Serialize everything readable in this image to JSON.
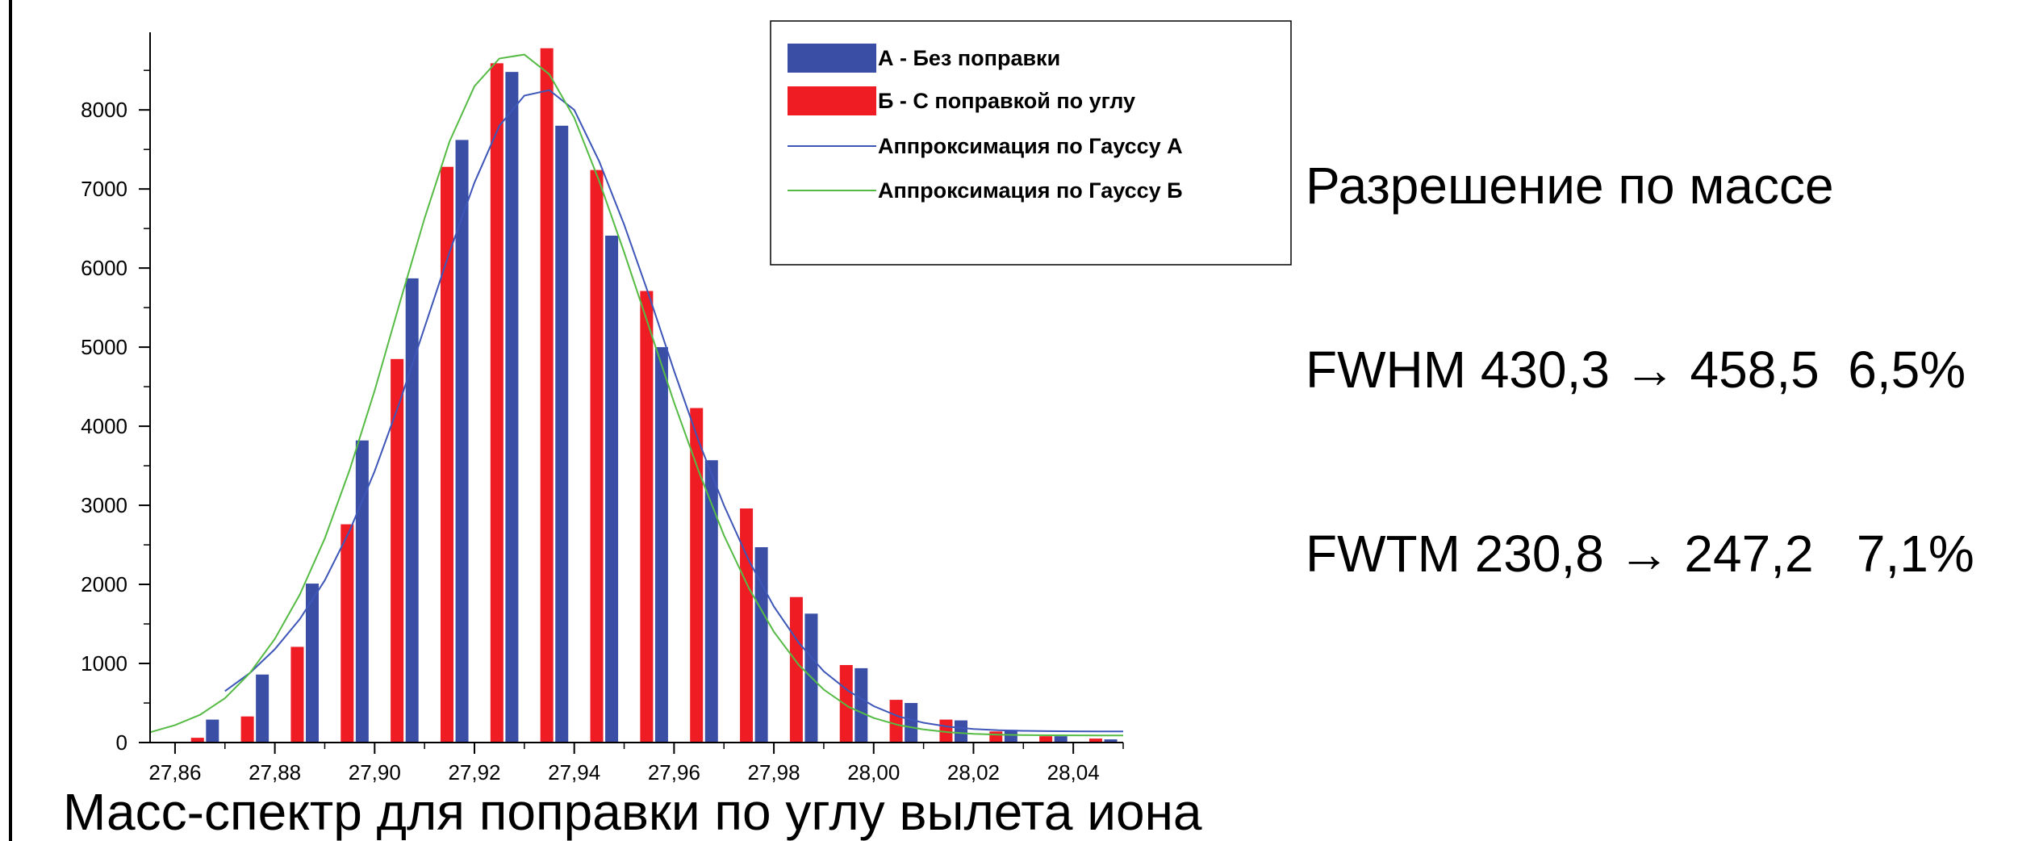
{
  "colors": {
    "series_a": "#3a4ea6",
    "series_b": "#ef1c24",
    "fit_a": "#3d56b8",
    "fit_b": "#55bb44",
    "axis": "#000000"
  },
  "chart_data": {
    "type": "bar",
    "title": "",
    "xlabel": "",
    "ylabel": "",
    "xlim": [
      27.855,
      28.05
    ],
    "ylim": [
      0,
      8900
    ],
    "x_ticks": [
      27.86,
      27.88,
      27.9,
      27.92,
      27.94,
      27.96,
      27.98,
      28.0,
      28.02,
      28.04
    ],
    "x_tick_labels": [
      "27,86",
      "27,88",
      "27,90",
      "27,92",
      "27,94",
      "27,96",
      "27,98",
      "28,00",
      "28,02",
      "28,04"
    ],
    "y_ticks": [
      0,
      1000,
      2000,
      3000,
      4000,
      5000,
      6000,
      7000,
      8000
    ],
    "y_tick_labels": [
      "0",
      "1000",
      "2000",
      "3000",
      "4000",
      "5000",
      "6000",
      "7000",
      "8000"
    ],
    "grid": false,
    "legend_position": "top-right",
    "series": [
      {
        "name": "А - Без поправки",
        "kind": "bar",
        "x": [
          27.8675,
          27.8775,
          27.8875,
          27.8975,
          27.9075,
          27.9175,
          27.9275,
          27.9375,
          27.9475,
          27.9575,
          27.9675,
          27.9775,
          27.9875,
          27.9975,
          28.0075,
          28.0175,
          28.0275,
          28.0375,
          28.0475
        ],
        "values": [
          290,
          860,
          2010,
          3820,
          5870,
          7620,
          8480,
          7800,
          6410,
          5000,
          3570,
          2470,
          1630,
          940,
          500,
          280,
          160,
          80,
          40
        ]
      },
      {
        "name": "Б - С поправкой по углу",
        "kind": "bar",
        "x": [
          27.8645,
          27.8745,
          27.8845,
          27.8945,
          27.9045,
          27.9145,
          27.9245,
          27.9345,
          27.9445,
          27.9545,
          27.9645,
          27.9745,
          27.9845,
          27.9945,
          28.0045,
          28.0145,
          28.0245,
          28.0345,
          28.0445
        ],
        "values": [
          60,
          330,
          1210,
          2760,
          4850,
          7280,
          8590,
          8780,
          7240,
          5710,
          4230,
          2960,
          1840,
          980,
          540,
          290,
          140,
          80,
          50
        ]
      },
      {
        "name": "Аппроксимация по Гауссу А",
        "kind": "line",
        "x": [
          27.87,
          27.875,
          27.88,
          27.885,
          27.89,
          27.895,
          27.9,
          27.905,
          27.91,
          27.915,
          27.92,
          27.925,
          27.93,
          27.935,
          27.94,
          27.945,
          27.95,
          27.955,
          27.96,
          27.965,
          27.97,
          27.975,
          27.98,
          27.985,
          27.99,
          27.995,
          28.0,
          28.005,
          28.01,
          28.015,
          28.02,
          28.025,
          28.03,
          28.035,
          28.04,
          28.045,
          28.05
        ],
        "values": [
          650,
          880,
          1180,
          1560,
          2050,
          2680,
          3430,
          4300,
          5250,
          6200,
          7080,
          7800,
          8180,
          8250,
          8000,
          7350,
          6550,
          5650,
          4700,
          3800,
          3000,
          2300,
          1720,
          1260,
          900,
          650,
          460,
          330,
          250,
          200,
          170,
          155,
          148,
          144,
          142,
          141,
          140
        ]
      },
      {
        "name": "Аппроксимация по Гауссу Б",
        "kind": "line",
        "x": [
          27.855,
          27.86,
          27.865,
          27.87,
          27.875,
          27.88,
          27.885,
          27.89,
          27.895,
          27.9,
          27.905,
          27.91,
          27.915,
          27.92,
          27.925,
          27.93,
          27.935,
          27.94,
          27.945,
          27.95,
          27.955,
          27.96,
          27.965,
          27.97,
          27.975,
          27.98,
          27.985,
          27.99,
          27.995,
          28.0,
          28.005,
          28.01,
          28.015,
          28.02,
          28.025,
          28.03,
          28.035,
          28.04,
          28.045,
          28.05
        ],
        "values": [
          130,
          220,
          350,
          560,
          880,
          1310,
          1870,
          2580,
          3450,
          4450,
          5550,
          6630,
          7600,
          8300,
          8650,
          8700,
          8450,
          7900,
          7100,
          6200,
          5250,
          4300,
          3420,
          2620,
          1950,
          1400,
          980,
          670,
          450,
          310,
          220,
          165,
          130,
          110,
          100,
          95,
          92,
          91,
          90,
          90
        ]
      }
    ]
  },
  "resolution": {
    "line1": "Разрешение по массе",
    "line2": "FWHM 430,3 → 458,5  6,5%",
    "line3": "FWTM 230,8 → 247,2   7,1%"
  },
  "caption": "Масс-спектр для поправки по углу вылета иона"
}
